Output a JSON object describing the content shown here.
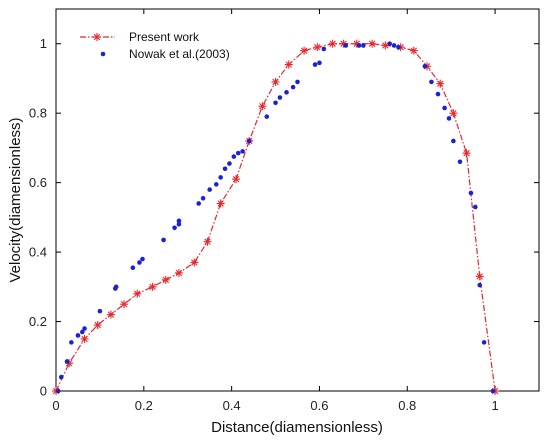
{
  "chart_data": {
    "type": "line",
    "title": "",
    "xlabel": "Distance(diamensionless)",
    "ylabel": "Velocity(diamensionless)",
    "xlim": [
      0,
      1.1
    ],
    "ylim": [
      0,
      1.1
    ],
    "xticks": [
      0,
      0.2,
      0.4,
      0.6,
      0.8,
      1
    ],
    "yticks": [
      0,
      0.2,
      0.4,
      0.6,
      0.8,
      1
    ],
    "xtick_labels": [
      "0",
      "0.2",
      "0.4",
      "0.6",
      "0.8",
      "1"
    ],
    "ytick_labels": [
      "0",
      "0.2",
      "0.4",
      "0.6",
      "0.8",
      "1"
    ],
    "grid": false,
    "legend_position": "top-left",
    "series": [
      {
        "name": "Present work",
        "style": "dash-dot line with asterisk markers",
        "color": "#e8272d",
        "points": [
          [
            0.0,
            0.0
          ],
          [
            0.03,
            0.08
          ],
          [
            0.065,
            0.15
          ],
          [
            0.095,
            0.19
          ],
          [
            0.125,
            0.22
          ],
          [
            0.155,
            0.25
          ],
          [
            0.185,
            0.28
          ],
          [
            0.22,
            0.3
          ],
          [
            0.25,
            0.32
          ],
          [
            0.28,
            0.34
          ],
          [
            0.315,
            0.37
          ],
          [
            0.345,
            0.43
          ],
          [
            0.375,
            0.54
          ],
          [
            0.41,
            0.61
          ],
          [
            0.44,
            0.72
          ],
          [
            0.47,
            0.82
          ],
          [
            0.5,
            0.89
          ],
          [
            0.53,
            0.94
          ],
          [
            0.565,
            0.98
          ],
          [
            0.595,
            0.99
          ],
          [
            0.63,
            1.0
          ],
          [
            0.655,
            1.0
          ],
          [
            0.685,
            1.0
          ],
          [
            0.72,
            1.0
          ],
          [
            0.75,
            0.995
          ],
          [
            0.785,
            0.99
          ],
          [
            0.815,
            0.98
          ],
          [
            0.845,
            0.935
          ],
          [
            0.875,
            0.885
          ],
          [
            0.905,
            0.8
          ],
          [
            0.935,
            0.685
          ],
          [
            0.965,
            0.33
          ],
          [
            1.0,
            0.0
          ]
        ]
      },
      {
        "name": "Nowak et al.(2003)",
        "style": "dot markers",
        "color": "#1a22d6",
        "points": [
          [
            0.005,
            0.0
          ],
          [
            0.012,
            0.04
          ],
          [
            0.025,
            0.085
          ],
          [
            0.035,
            0.14
          ],
          [
            0.05,
            0.16
          ],
          [
            0.06,
            0.17
          ],
          [
            0.065,
            0.18
          ],
          [
            0.1,
            0.23
          ],
          [
            0.135,
            0.295
          ],
          [
            0.137,
            0.3
          ],
          [
            0.175,
            0.355
          ],
          [
            0.19,
            0.37
          ],
          [
            0.197,
            0.38
          ],
          [
            0.245,
            0.435
          ],
          [
            0.27,
            0.47
          ],
          [
            0.28,
            0.48
          ],
          [
            0.28,
            0.49
          ],
          [
            0.325,
            0.54
          ],
          [
            0.335,
            0.555
          ],
          [
            0.35,
            0.58
          ],
          [
            0.365,
            0.595
          ],
          [
            0.375,
            0.615
          ],
          [
            0.385,
            0.64
          ],
          [
            0.395,
            0.655
          ],
          [
            0.405,
            0.675
          ],
          [
            0.415,
            0.685
          ],
          [
            0.425,
            0.69
          ],
          [
            0.44,
            0.72
          ],
          [
            0.48,
            0.79
          ],
          [
            0.5,
            0.83
          ],
          [
            0.51,
            0.845
          ],
          [
            0.525,
            0.86
          ],
          [
            0.54,
            0.875
          ],
          [
            0.55,
            0.89
          ],
          [
            0.59,
            0.94
          ],
          [
            0.6,
            0.945
          ],
          [
            0.61,
            0.985
          ],
          [
            0.66,
            0.995
          ],
          [
            0.69,
            0.995
          ],
          [
            0.7,
            0.995
          ],
          [
            0.76,
            1.0
          ],
          [
            0.77,
            0.995
          ],
          [
            0.78,
            0.99
          ],
          [
            0.84,
            0.935
          ],
          [
            0.855,
            0.89
          ],
          [
            0.87,
            0.855
          ],
          [
            0.885,
            0.815
          ],
          [
            0.895,
            0.785
          ],
          [
            0.905,
            0.72
          ],
          [
            0.92,
            0.66
          ],
          [
            0.945,
            0.57
          ],
          [
            0.955,
            0.53
          ],
          [
            0.965,
            0.305
          ],
          [
            0.975,
            0.14
          ],
          [
            0.995,
            0.0
          ]
        ]
      }
    ]
  }
}
